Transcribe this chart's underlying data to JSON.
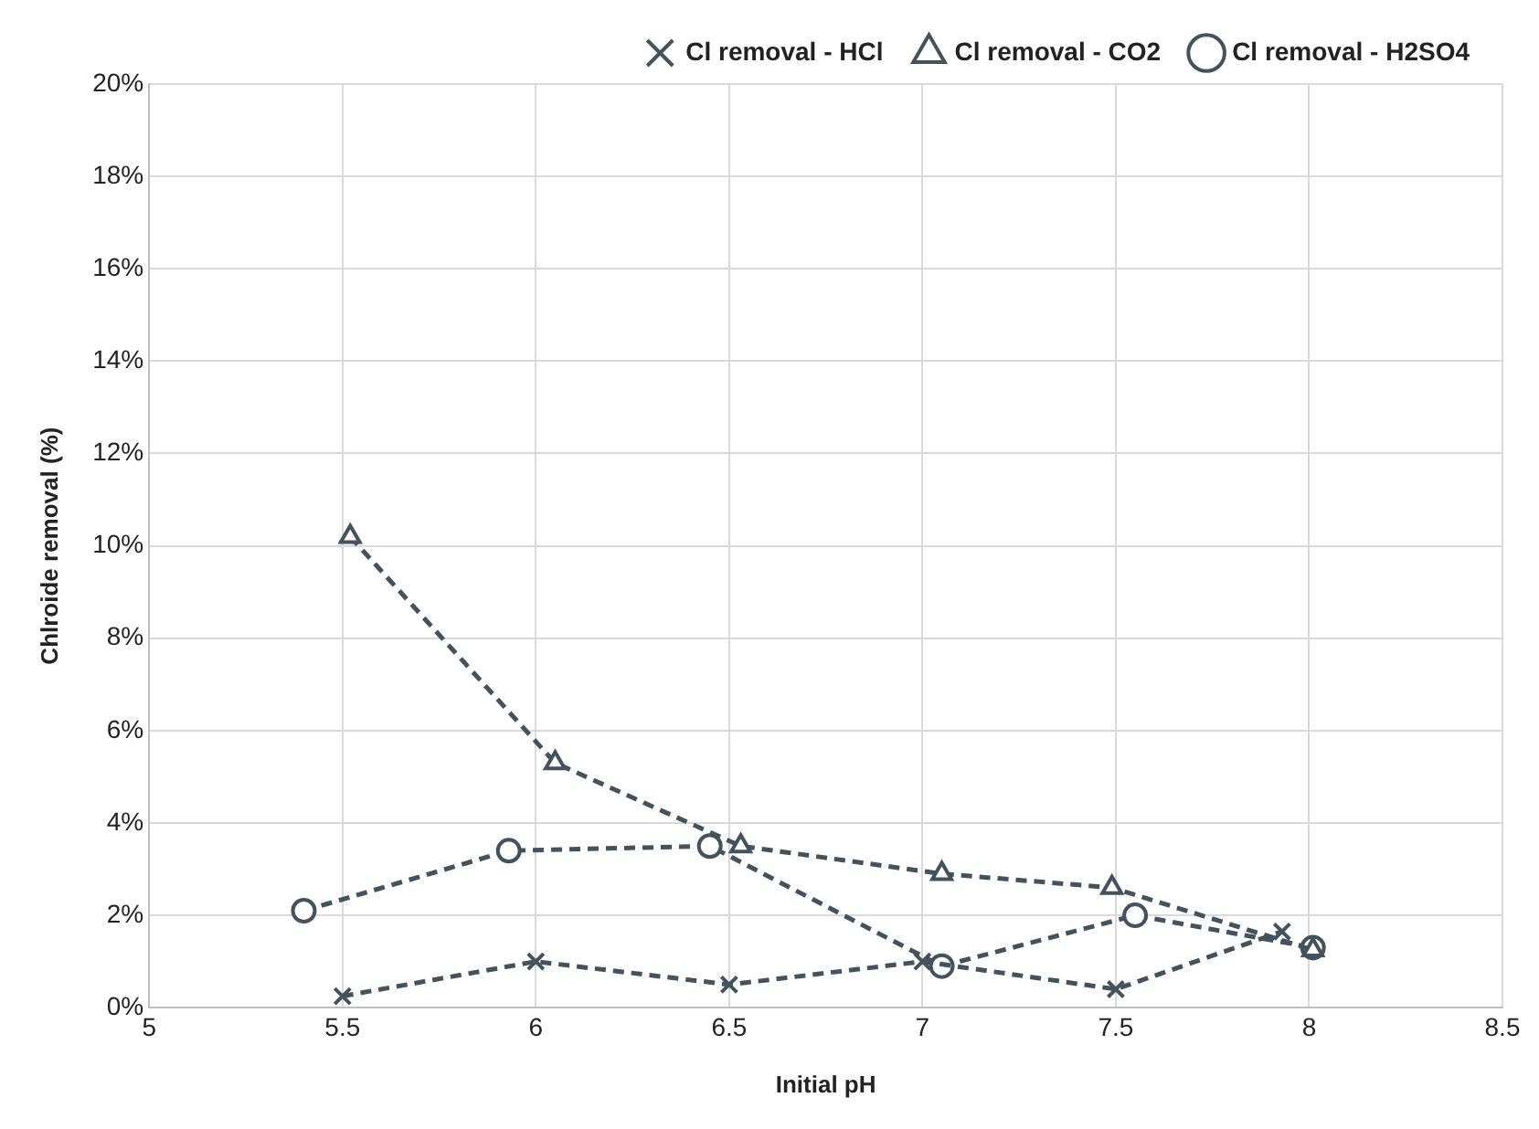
{
  "chart_data": {
    "type": "line",
    "xlabel": "Initial pH",
    "ylabel": "Chlroide removal (%)",
    "xlim": [
      5,
      8.5
    ],
    "xticks": [
      5,
      5.5,
      6,
      6.5,
      7,
      7.5,
      8,
      8.5
    ],
    "ylim": [
      0,
      20
    ],
    "yticks": [
      {
        "value": 0,
        "label": "0%"
      },
      {
        "value": 2,
        "label": "2%"
      },
      {
        "value": 4,
        "label": "4%"
      },
      {
        "value": 6,
        "label": "6%"
      },
      {
        "value": 8,
        "label": "8%"
      },
      {
        "value": 10,
        "label": "10%"
      },
      {
        "value": 12,
        "label": "12%"
      },
      {
        "value": 14,
        "label": "14%"
      },
      {
        "value": 16,
        "label": "16%"
      },
      {
        "value": 18,
        "label": "18%"
      },
      {
        "value": 20,
        "label": "20%"
      }
    ],
    "grid": true,
    "legend": "top right",
    "line_style": "dashed",
    "series": [
      {
        "name": "Cl removal - H2SO4",
        "color": "#44525c",
        "marker": "circle",
        "x": [
          5.4,
          5.93,
          6.45,
          7.05,
          7.55,
          8.01
        ],
        "values": [
          2.1,
          3.4,
          3.5,
          0.9,
          2.0,
          1.3
        ]
      },
      {
        "name": "Cl removal - CO2",
        "color": "#44525c",
        "marker": "triangle",
        "x": [
          5.52,
          6.05,
          6.53,
          7.05,
          7.49,
          8.01
        ],
        "values": [
          10.2,
          5.3,
          3.5,
          2.9,
          2.6,
          1.25
        ]
      },
      {
        "name": "Cl removal - HCl",
        "color": "#44525c",
        "marker": "cross",
        "x": [
          5.5,
          6.0,
          6.5,
          7.0,
          7.5,
          7.93
        ],
        "values": [
          0.25,
          1.0,
          0.5,
          1.0,
          0.4,
          1.65
        ]
      }
    ]
  }
}
